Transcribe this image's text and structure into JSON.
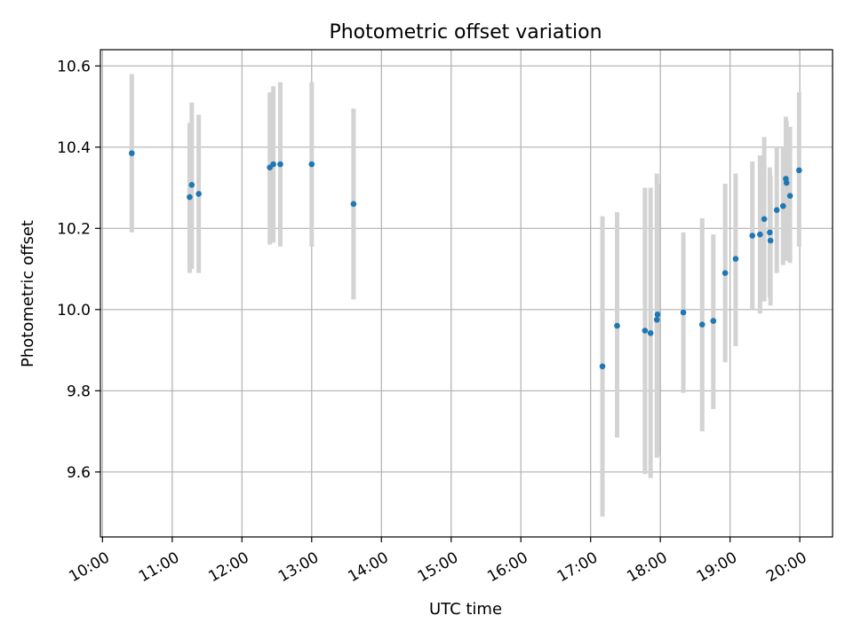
{
  "chart_data": {
    "type": "scatter",
    "title": "Photometric offset variation",
    "xlabel": "UTC time",
    "ylabel": "Photometric offset",
    "x_unit": "hour of day (UTC)",
    "xlim": [
      9.97,
      20.47
    ],
    "ylim": [
      9.44,
      10.64
    ],
    "x_ticks": [
      10,
      11,
      12,
      13,
      14,
      15,
      16,
      17,
      18,
      19,
      20
    ],
    "x_tick_labels": [
      "10:00",
      "11:00",
      "12:00",
      "13:00",
      "14:00",
      "15:00",
      "16:00",
      "17:00",
      "18:00",
      "19:00",
      "20:00"
    ],
    "y_ticks": [
      9.6,
      9.8,
      10.0,
      10.2,
      10.4,
      10.6
    ],
    "y_tick_labels": [
      "9.6",
      "9.8",
      "10.0",
      "10.2",
      "10.4",
      "10.6"
    ],
    "grid": true,
    "colors": {
      "points": "#1f77b4",
      "error_bars": "#d3d3d3"
    },
    "points": [
      {
        "x": 10.42,
        "y": 10.385,
        "err_low": 10.19,
        "err_high": 10.58
      },
      {
        "x": 11.25,
        "y": 10.277,
        "err_low": 10.09,
        "err_high": 10.46
      },
      {
        "x": 11.28,
        "y": 10.307,
        "err_low": 10.1,
        "err_high": 10.51
      },
      {
        "x": 11.38,
        "y": 10.285,
        "err_low": 10.09,
        "err_high": 10.48
      },
      {
        "x": 12.4,
        "y": 10.35,
        "err_low": 10.16,
        "err_high": 10.535
      },
      {
        "x": 12.45,
        "y": 10.358,
        "err_low": 10.165,
        "err_high": 10.55
      },
      {
        "x": 12.55,
        "y": 10.358,
        "err_low": 10.155,
        "err_high": 10.56
      },
      {
        "x": 13.0,
        "y": 10.358,
        "err_low": 10.155,
        "err_high": 10.56
      },
      {
        "x": 13.6,
        "y": 10.26,
        "err_low": 10.025,
        "err_high": 10.495
      },
      {
        "x": 17.17,
        "y": 9.86,
        "err_low": 9.49,
        "err_high": 10.23
      },
      {
        "x": 17.38,
        "y": 9.96,
        "err_low": 9.685,
        "err_high": 10.24
      },
      {
        "x": 17.78,
        "y": 9.948,
        "err_low": 9.595,
        "err_high": 10.3
      },
      {
        "x": 17.86,
        "y": 9.942,
        "err_low": 9.585,
        "err_high": 10.3
      },
      {
        "x": 17.95,
        "y": 9.975,
        "err_low": 9.635,
        "err_high": 10.335
      },
      {
        "x": 17.96,
        "y": 9.988,
        "err_low": 9.64,
        "err_high": 10.31
      },
      {
        "x": 18.33,
        "y": 9.993,
        "err_low": 9.795,
        "err_high": 10.19
      },
      {
        "x": 18.6,
        "y": 9.963,
        "err_low": 9.7,
        "err_high": 10.225
      },
      {
        "x": 18.76,
        "y": 9.972,
        "err_low": 9.755,
        "err_high": 10.185
      },
      {
        "x": 18.93,
        "y": 10.09,
        "err_low": 9.87,
        "err_high": 10.31
      },
      {
        "x": 19.08,
        "y": 10.125,
        "err_low": 9.91,
        "err_high": 10.335
      },
      {
        "x": 19.32,
        "y": 10.182,
        "err_low": 10.0,
        "err_high": 10.365
      },
      {
        "x": 19.43,
        "y": 10.185,
        "err_low": 9.99,
        "err_high": 10.38
      },
      {
        "x": 19.49,
        "y": 10.223,
        "err_low": 10.02,
        "err_high": 10.425
      },
      {
        "x": 19.57,
        "y": 10.19,
        "err_low": 10.03,
        "err_high": 10.35
      },
      {
        "x": 19.58,
        "y": 10.17,
        "err_low": 10.01,
        "err_high": 10.33
      },
      {
        "x": 19.67,
        "y": 10.245,
        "err_low": 10.09,
        "err_high": 10.4
      },
      {
        "x": 19.76,
        "y": 10.255,
        "err_low": 10.11,
        "err_high": 10.4
      },
      {
        "x": 19.8,
        "y": 10.322,
        "err_low": 10.17,
        "err_high": 10.475
      },
      {
        "x": 19.81,
        "y": 10.312,
        "err_low": 10.12,
        "err_high": 10.465
      },
      {
        "x": 19.86,
        "y": 10.28,
        "err_low": 10.115,
        "err_high": 10.45
      },
      {
        "x": 19.99,
        "y": 10.343,
        "err_low": 10.155,
        "err_high": 10.535
      }
    ]
  }
}
